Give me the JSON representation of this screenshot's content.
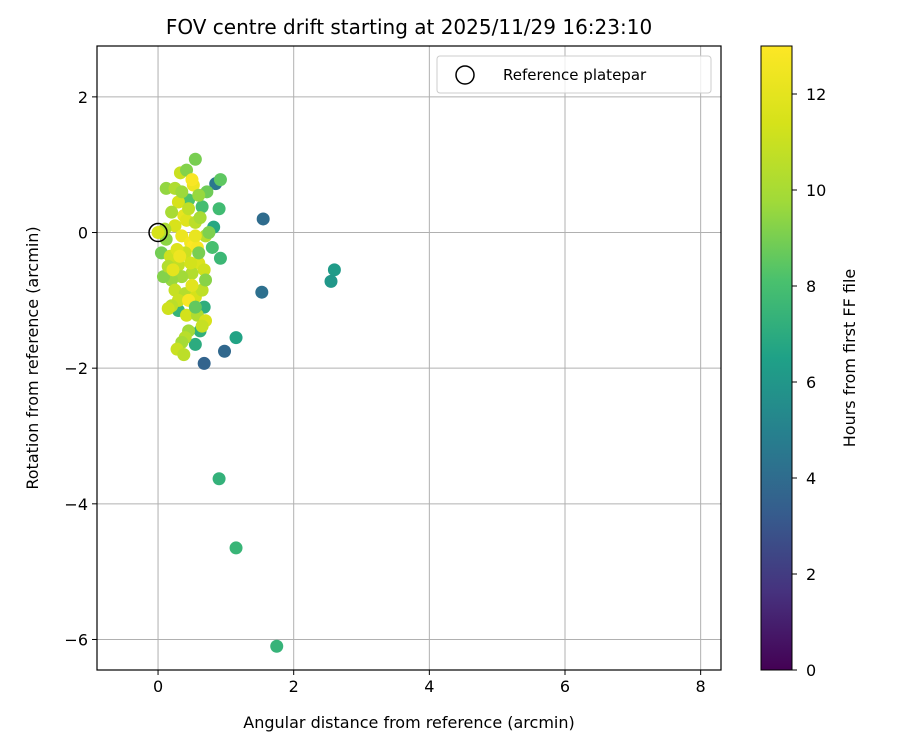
{
  "chart_data": {
    "type": "scatter",
    "title": "FOV centre drift starting at 2025/11/29 16:23:10",
    "xlabel": "Angular distance from reference (arcmin)",
    "ylabel": "Rotation from reference (arcmin)",
    "xlim": [
      -0.9,
      8.3
    ],
    "ylim": [
      -6.45,
      2.75
    ],
    "xticks": [
      0,
      2,
      4,
      6,
      8
    ],
    "xtick_labels": [
      "0",
      "2",
      "4",
      "6",
      "8"
    ],
    "yticks": [
      2,
      0,
      -2,
      -4,
      -6
    ],
    "ytick_labels": [
      "2",
      "0",
      "−2",
      "−4",
      "−6"
    ],
    "grid": true,
    "legend": {
      "position": "top-right",
      "entries": [
        "Reference platepar"
      ]
    },
    "reference_point": {
      "x": 0,
      "y": 0,
      "label": "Reference platepar"
    },
    "colorbar": {
      "label": "Hours from first FF file",
      "min": 0,
      "max": 13,
      "ticks": [
        0,
        2,
        4,
        6,
        8,
        10,
        12
      ],
      "tick_labels": [
        "0",
        "2",
        "4",
        "6",
        "8",
        "10",
        "12"
      ],
      "colormap": "viridis"
    },
    "points": [
      {
        "x": 1.55,
        "y": 0.2,
        "hours": 4.0
      },
      {
        "x": 1.53,
        "y": -0.88,
        "hours": 4.2
      },
      {
        "x": 0.98,
        "y": -1.75,
        "hours": 3.8
      },
      {
        "x": 0.68,
        "y": -1.93,
        "hours": 3.6
      },
      {
        "x": 0.85,
        "y": 0.72,
        "hours": 4.5
      },
      {
        "x": 2.6,
        "y": -0.55,
        "hours": 6.2
      },
      {
        "x": 2.55,
        "y": -0.72,
        "hours": 6.0
      },
      {
        "x": 1.15,
        "y": -1.55,
        "hours": 6.6
      },
      {
        "x": 0.9,
        "y": -3.63,
        "hours": 7.3
      },
      {
        "x": 1.15,
        "y": -4.65,
        "hours": 7.5
      },
      {
        "x": 1.75,
        "y": -6.1,
        "hours": 7.4
      },
      {
        "x": 0.55,
        "y": -1.65,
        "hours": 7.0
      },
      {
        "x": 0.62,
        "y": -1.45,
        "hours": 7.2
      },
      {
        "x": 0.68,
        "y": -1.1,
        "hours": 7.1
      },
      {
        "x": 0.92,
        "y": -0.38,
        "hours": 7.6
      },
      {
        "x": 0.9,
        "y": 0.35,
        "hours": 7.8
      },
      {
        "x": 0.82,
        "y": 0.08,
        "hours": 6.8
      },
      {
        "x": 0.8,
        "y": -0.22,
        "hours": 8.0
      },
      {
        "x": 0.92,
        "y": 0.78,
        "hours": 8.5
      },
      {
        "x": 0.55,
        "y": 1.08,
        "hours": 9.0
      },
      {
        "x": 0.72,
        "y": 0.6,
        "hours": 8.8
      },
      {
        "x": 0.65,
        "y": 0.38,
        "hours": 7.9
      },
      {
        "x": 0.45,
        "y": 0.48,
        "hours": 8.2
      },
      {
        "x": 0.3,
        "y": -1.15,
        "hours": 7.4
      },
      {
        "x": 0.12,
        "y": 0.65,
        "hours": 9.5
      },
      {
        "x": 0.25,
        "y": 0.65,
        "hours": 10.2
      },
      {
        "x": 0.33,
        "y": 0.88,
        "hours": 11.0
      },
      {
        "x": 0.42,
        "y": 0.92,
        "hours": 9.2
      },
      {
        "x": 0.52,
        "y": 0.7,
        "hours": 12.4
      },
      {
        "x": 0.5,
        "y": 0.78,
        "hours": 12.8
      },
      {
        "x": 0.3,
        "y": 0.45,
        "hours": 11.4
      },
      {
        "x": 0.38,
        "y": 0.25,
        "hours": 12.1
      },
      {
        "x": 0.25,
        "y": 0.1,
        "hours": 11.5
      },
      {
        "x": 0.35,
        "y": -0.05,
        "hours": 12.3
      },
      {
        "x": 0.42,
        "y": 0.18,
        "hours": 11.8
      },
      {
        "x": 0.55,
        "y": 0.15,
        "hours": 10.6
      },
      {
        "x": 0.62,
        "y": 0.22,
        "hours": 10.0
      },
      {
        "x": 0.7,
        "y": -0.05,
        "hours": 10.4
      },
      {
        "x": 0.48,
        "y": -0.15,
        "hours": 12.6
      },
      {
        "x": 0.52,
        "y": -0.2,
        "hours": 12.9
      },
      {
        "x": 0.58,
        "y": -0.22,
        "hours": 12.7
      },
      {
        "x": 0.4,
        "y": -0.3,
        "hours": 11.0
      },
      {
        "x": 0.3,
        "y": -0.48,
        "hours": 10.8
      },
      {
        "x": 0.6,
        "y": -0.45,
        "hours": 11.6
      },
      {
        "x": 0.68,
        "y": -0.55,
        "hours": 11.2
      },
      {
        "x": 0.5,
        "y": -0.6,
        "hours": 10.3
      },
      {
        "x": 0.35,
        "y": -0.65,
        "hours": 9.8
      },
      {
        "x": 0.2,
        "y": -0.7,
        "hours": 9.6
      },
      {
        "x": 0.08,
        "y": -0.65,
        "hours": 9.2
      },
      {
        "x": 0.05,
        "y": -0.3,
        "hours": 8.9
      },
      {
        "x": 0.12,
        "y": -0.1,
        "hours": 9.4
      },
      {
        "x": 0.1,
        "y": 0.05,
        "hours": 10.1
      },
      {
        "x": 0.18,
        "y": -0.35,
        "hours": 11.1
      },
      {
        "x": 0.25,
        "y": -0.85,
        "hours": 10.9
      },
      {
        "x": 0.4,
        "y": -0.9,
        "hours": 10.4
      },
      {
        "x": 0.55,
        "y": -0.95,
        "hours": 11.4
      },
      {
        "x": 0.65,
        "y": -0.85,
        "hours": 10.7
      },
      {
        "x": 0.5,
        "y": -0.78,
        "hours": 11.9
      },
      {
        "x": 0.3,
        "y": -1.0,
        "hours": 11.0
      },
      {
        "x": 0.2,
        "y": -1.08,
        "hours": 10.6
      },
      {
        "x": 0.15,
        "y": -1.12,
        "hours": 11.2
      },
      {
        "x": 0.45,
        "y": -1.0,
        "hours": 12.8
      },
      {
        "x": 0.42,
        "y": -1.22,
        "hours": 11.3
      },
      {
        "x": 0.58,
        "y": -1.22,
        "hours": 10.2
      },
      {
        "x": 0.7,
        "y": -1.3,
        "hours": 11.5
      },
      {
        "x": 0.65,
        "y": -1.38,
        "hours": 10.9
      },
      {
        "x": 0.45,
        "y": -1.45,
        "hours": 9.8
      },
      {
        "x": 0.4,
        "y": -1.55,
        "hours": 10.5
      },
      {
        "x": 0.35,
        "y": -1.62,
        "hours": 9.9
      },
      {
        "x": 0.28,
        "y": -1.72,
        "hours": 11.0
      },
      {
        "x": 0.38,
        "y": -1.8,
        "hours": 10.6
      },
      {
        "x": 0.0,
        "y": 0.0,
        "hours": 11.4
      },
      {
        "x": 0.2,
        "y": 0.3,
        "hours": 10.0
      },
      {
        "x": 0.15,
        "y": -0.5,
        "hours": 10.3
      },
      {
        "x": 0.28,
        "y": -0.25,
        "hours": 11.7
      },
      {
        "x": 0.6,
        "y": 0.55,
        "hours": 9.6
      },
      {
        "x": 0.75,
        "y": 0.0,
        "hours": 9.1
      },
      {
        "x": 0.45,
        "y": 0.35,
        "hours": 10.7
      },
      {
        "x": 0.35,
        "y": 0.6,
        "hours": 9.7
      },
      {
        "x": 0.55,
        "y": -0.05,
        "hours": 12.2
      },
      {
        "x": 0.7,
        "y": -0.7,
        "hours": 9.3
      },
      {
        "x": 0.55,
        "y": -1.1,
        "hours": 8.6
      },
      {
        "x": 0.6,
        "y": -0.3,
        "hours": 9.0
      },
      {
        "x": 0.48,
        "y": -0.45,
        "hours": 11.3
      },
      {
        "x": 0.22,
        "y": -0.55,
        "hours": 12.0
      },
      {
        "x": 0.32,
        "y": -0.35,
        "hours": 12.4
      }
    ]
  }
}
